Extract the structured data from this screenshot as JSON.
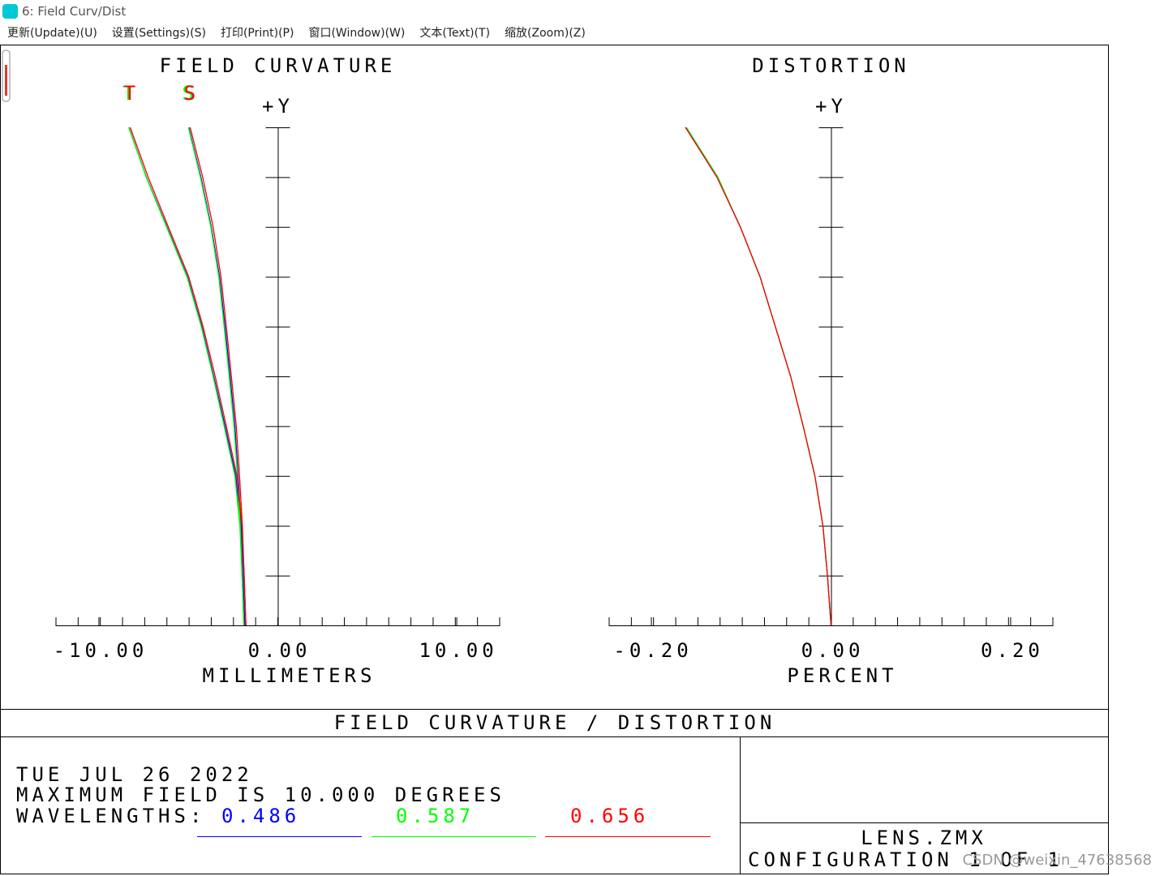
{
  "window": {
    "title": "6: Field Curv/Dist",
    "menu": [
      "更新(Update)(U)",
      "设置(Settings)(S)",
      "打印(Print)(P)",
      "窗口(Window)(W)",
      "文本(Text)(T)",
      "缩放(Zoom)(Z)"
    ]
  },
  "chart_data": [
    {
      "type": "line",
      "title": "FIELD CURVATURE",
      "y_label": "+Y",
      "x_label": "MILLIMETERS",
      "field": [
        0,
        1,
        2,
        3,
        4,
        5,
        6,
        7,
        8,
        9,
        10
      ],
      "xlim": [
        -12.4,
        12.4
      ],
      "x_divisions": 20,
      "xticks": [
        {
          "value": -10,
          "label": "-10.00"
        },
        {
          "value": 0,
          "label": "0.00"
        },
        {
          "value": 10,
          "label": "10.00"
        }
      ],
      "ylim": [
        0,
        10
      ],
      "yticks": [
        0,
        1,
        2,
        3,
        4,
        5,
        6,
        7,
        8,
        9,
        10
      ],
      "series": [
        {
          "name": "T",
          "color": "#0000ff",
          "values": [
            -1.85,
            -1.95,
            -2.08,
            -2.35,
            -2.95,
            -3.58,
            -4.25,
            -5.05,
            -6.2,
            -7.35,
            -8.33
          ]
        },
        {
          "name": "S",
          "color": "#0000ff",
          "values": [
            -1.85,
            -1.95,
            -2.05,
            -2.22,
            -2.4,
            -2.67,
            -2.95,
            -3.26,
            -3.72,
            -4.3,
            -4.98
          ]
        },
        {
          "name": "T",
          "color": "#00ff00",
          "values": [
            -1.9,
            -2.0,
            -2.12,
            -2.4,
            -3.0,
            -3.62,
            -4.28,
            -5.08,
            -6.22,
            -7.36,
            -8.33
          ]
        },
        {
          "name": "S",
          "color": "#00ff00",
          "values": [
            -1.9,
            -2.0,
            -2.1,
            -2.26,
            -2.45,
            -2.72,
            -3.0,
            -3.3,
            -3.75,
            -4.33,
            -5.0
          ]
        },
        {
          "name": "T",
          "color": "#ff0000",
          "values": [
            -1.78,
            -1.88,
            -2.0,
            -2.28,
            -2.88,
            -3.5,
            -4.18,
            -4.98,
            -6.12,
            -7.25,
            -8.25
          ]
        },
        {
          "name": "S",
          "color": "#ff0000",
          "values": [
            -1.78,
            -1.88,
            -1.98,
            -2.14,
            -2.32,
            -2.6,
            -2.88,
            -3.18,
            -3.62,
            -4.2,
            -4.9
          ]
        }
      ]
    },
    {
      "type": "line",
      "title": "DISTORTION",
      "y_label": "+Y",
      "x_label": "PERCENT",
      "field": [
        0,
        1,
        2,
        3,
        4,
        5,
        6,
        7,
        8,
        9,
        10
      ],
      "xlim": [
        -0.247,
        0.247
      ],
      "x_divisions": 20,
      "xticks": [
        {
          "value": -0.2,
          "label": "-0.20"
        },
        {
          "value": 0,
          "label": "0.00"
        },
        {
          "value": 0.2,
          "label": "0.20"
        }
      ],
      "ylim": [
        0,
        10
      ],
      "yticks": [
        0,
        1,
        2,
        3,
        4,
        5,
        6,
        7,
        8,
        9,
        10
      ],
      "series": [
        {
          "color": "#0000ff",
          "values": [
            0,
            -0.004,
            -0.009,
            -0.018,
            -0.031,
            -0.045,
            -0.062,
            -0.079,
            -0.101,
            -0.127,
            -0.162
          ]
        },
        {
          "color": "#00ff00",
          "values": [
            0,
            -0.004,
            -0.009,
            -0.018,
            -0.031,
            -0.045,
            -0.062,
            -0.079,
            -0.101,
            -0.126,
            -0.161
          ]
        },
        {
          "color": "#ff0000",
          "values": [
            0,
            -0.004,
            -0.009,
            -0.018,
            -0.031,
            -0.045,
            -0.062,
            -0.079,
            -0.101,
            -0.127,
            -0.162
          ]
        }
      ]
    }
  ],
  "footer": {
    "heading": "FIELD CURVATURE / DISTORTION",
    "date": "TUE JUL 26 2022",
    "field_line": "MAXIMUM FIELD IS 10.000 DEGREES",
    "wavelengths_label": "WAVELENGTHS:",
    "wavelengths": [
      {
        "label": "0.486",
        "color": "#0000ff"
      },
      {
        "label": "0.587",
        "color": "#00ff00"
      },
      {
        "label": "0.656",
        "color": "#ff0000"
      }
    ],
    "file": "LENS.ZMX",
    "config": "CONFIGURATION 1 OF 1"
  },
  "watermark": "CSDN @weixin_47638568"
}
